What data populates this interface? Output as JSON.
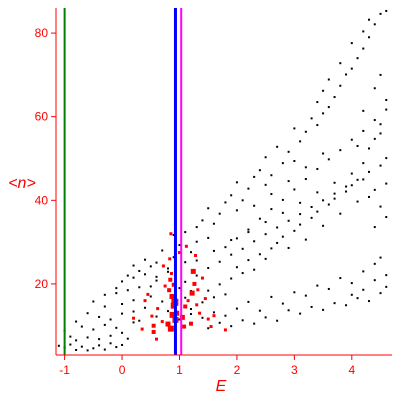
{
  "chart_data": {
    "type": "scatter",
    "xlabel": "E",
    "ylabel": "<n>",
    "xlim": [
      -1.15,
      4.7
    ],
    "ylim": [
      3,
      86
    ],
    "xticks": [
      -1,
      0,
      1,
      2,
      3,
      4
    ],
    "yticks": [
      20,
      40,
      60,
      80
    ],
    "colors": {
      "axes": "#ff0000",
      "points": "#000000",
      "highlight": "#ff0000",
      "green_line": "#008000",
      "blue_line": "#0000ff",
      "magenta_line": "#ff00ff"
    },
    "vertical_lines": [
      {
        "x": -1.0,
        "color": "#008000"
      },
      {
        "x": 0.93,
        "color": "#0000ff"
      },
      {
        "x": 1.03,
        "color": "#ff00ff"
      }
    ],
    "series": [
      {
        "color": "#000000",
        "points": [
          [
            -1.1,
            5.2
          ],
          [
            -1.0,
            4.8
          ],
          [
            -0.9,
            5.5
          ],
          [
            -0.8,
            4.2
          ],
          [
            -0.7,
            5.0
          ],
          [
            -0.6,
            4.1
          ],
          [
            -0.5,
            4.6
          ],
          [
            -0.4,
            5.3
          ],
          [
            -0.3,
            4.3
          ],
          [
            -0.2,
            5.8
          ],
          [
            -0.1,
            4.9
          ],
          [
            0.0,
            5.4
          ],
          [
            -0.8,
            6.5
          ],
          [
            -0.6,
            7.2
          ],
          [
            -0.4,
            6.8
          ],
          [
            -0.2,
            7.6
          ],
          [
            0.0,
            8.3
          ],
          [
            0.1,
            6.9
          ],
          [
            -0.5,
            9.1
          ],
          [
            -0.3,
            10.2
          ],
          [
            -0.1,
            9.5
          ],
          [
            0.2,
            10.8
          ],
          [
            -0.7,
            9.8
          ],
          [
            -0.4,
            12.1
          ],
          [
            -0.2,
            11.5
          ],
          [
            0.0,
            12.9
          ],
          [
            0.2,
            13.4
          ],
          [
            0.3,
            11.2
          ],
          [
            -0.3,
            14.6
          ],
          [
            0.0,
            15.2
          ],
          [
            0.2,
            16.1
          ],
          [
            0.4,
            14.3
          ],
          [
            -0.1,
            17.8
          ],
          [
            0.1,
            18.5
          ],
          [
            0.3,
            19.2
          ],
          [
            0.5,
            17.0
          ],
          [
            0.0,
            20.6
          ],
          [
            0.2,
            21.5
          ],
          [
            0.4,
            22.3
          ],
          [
            0.6,
            20.8
          ],
          [
            0.3,
            23.1
          ],
          [
            0.5,
            24.2
          ],
          [
            0.6,
            25.1
          ],
          [
            0.8,
            23.7
          ],
          [
            0.9,
            26.4
          ],
          [
            1.1,
            25.2
          ],
          [
            0.7,
            28.0
          ],
          [
            1.0,
            29.3
          ],
          [
            1.2,
            27.6
          ],
          [
            1.3,
            30.1
          ],
          [
            0.9,
            31.7
          ],
          [
            1.1,
            32.4
          ],
          [
            1.3,
            33.6
          ],
          [
            1.5,
            31.0
          ],
          [
            1.4,
            35.2
          ],
          [
            1.6,
            34.4
          ],
          [
            1.7,
            36.8
          ],
          [
            1.5,
            38.1
          ],
          [
            1.8,
            39.5
          ],
          [
            2.0,
            37.6
          ],
          [
            1.9,
            41.2
          ],
          [
            2.1,
            40.0
          ],
          [
            2.2,
            42.8
          ],
          [
            2.0,
            44.3
          ],
          [
            2.3,
            45.6
          ],
          [
            2.5,
            43.7
          ],
          [
            2.4,
            47.2
          ],
          [
            2.6,
            46.0
          ],
          [
            2.8,
            48.9
          ],
          [
            2.5,
            50.3
          ],
          [
            2.9,
            51.6
          ],
          [
            3.0,
            49.4
          ],
          [
            2.7,
            52.8
          ],
          [
            3.1,
            54.1
          ],
          [
            3.2,
            56.4
          ],
          [
            3.0,
            57.2
          ],
          [
            3.4,
            58.0
          ],
          [
            3.3,
            59.6
          ],
          [
            3.5,
            60.8
          ],
          [
            3.6,
            62.3
          ],
          [
            3.4,
            63.5
          ],
          [
            3.7,
            64.7
          ],
          [
            3.5,
            66.2
          ],
          [
            3.8,
            67.4
          ],
          [
            3.6,
            68.9
          ],
          [
            3.9,
            70.1
          ],
          [
            4.0,
            71.5
          ],
          [
            3.8,
            72.8
          ],
          [
            4.1,
            74.0
          ],
          [
            4.2,
            76.3
          ],
          [
            4.0,
            77.6
          ],
          [
            4.3,
            79.0
          ],
          [
            4.2,
            80.4
          ],
          [
            4.4,
            82.1
          ],
          [
            4.5,
            84.6
          ],
          [
            4.6,
            85.3
          ],
          [
            4.3,
            83.2
          ],
          [
            4.5,
            70.0
          ],
          [
            4.4,
            66.8
          ],
          [
            4.6,
            64.0
          ],
          [
            4.2,
            61.4
          ],
          [
            4.5,
            58.2
          ],
          [
            1.2,
            14.0
          ],
          [
            1.4,
            15.6
          ],
          [
            1.6,
            16.8
          ],
          [
            1.5,
            18.4
          ],
          [
            1.7,
            19.9
          ],
          [
            1.8,
            17.5
          ],
          [
            1.9,
            21.3
          ],
          [
            2.1,
            22.6
          ],
          [
            2.0,
            24.0
          ],
          [
            2.2,
            25.7
          ],
          [
            2.3,
            23.4
          ],
          [
            2.4,
            27.1
          ],
          [
            2.6,
            28.5
          ],
          [
            2.5,
            26.0
          ],
          [
            2.7,
            29.8
          ],
          [
            2.8,
            31.3
          ],
          [
            2.9,
            28.6
          ],
          [
            3.0,
            32.7
          ],
          [
            3.1,
            34.2
          ],
          [
            3.2,
            30.6
          ],
          [
            3.3,
            35.8
          ],
          [
            3.4,
            37.3
          ],
          [
            3.5,
            33.9
          ],
          [
            3.6,
            39.0
          ],
          [
            3.7,
            40.4
          ],
          [
            3.8,
            36.8
          ],
          [
            3.9,
            42.1
          ],
          [
            4.0,
            43.6
          ],
          [
            4.1,
            39.7
          ],
          [
            4.2,
            45.0
          ],
          [
            4.3,
            46.8
          ],
          [
            4.4,
            42.5
          ],
          [
            4.5,
            48.3
          ],
          [
            4.6,
            50.1
          ],
          [
            4.3,
            52.4
          ],
          [
            4.4,
            54.7
          ],
          [
            4.5,
            56.0
          ],
          [
            4.2,
            48.9
          ],
          [
            4.6,
            44.0
          ],
          [
            4.1,
            53.0
          ],
          [
            1.0,
            11.5
          ],
          [
            1.2,
            12.8
          ],
          [
            1.4,
            11.9
          ],
          [
            1.6,
            13.2
          ],
          [
            1.8,
            12.4
          ],
          [
            2.0,
            14.1
          ],
          [
            2.2,
            15.7
          ],
          [
            2.4,
            13.6
          ],
          [
            2.6,
            16.9
          ],
          [
            2.8,
            15.3
          ],
          [
            3.0,
            18.0
          ],
          [
            3.2,
            17.2
          ],
          [
            3.4,
            19.6
          ],
          [
            3.6,
            18.8
          ],
          [
            3.8,
            21.4
          ],
          [
            4.0,
            20.2
          ],
          [
            4.2,
            23.0
          ],
          [
            4.4,
            24.8
          ],
          [
            4.6,
            22.1
          ],
          [
            4.5,
            26.3
          ],
          [
            1.1,
            20.5
          ],
          [
            1.3,
            22.0
          ],
          [
            1.5,
            23.8
          ],
          [
            1.7,
            25.3
          ],
          [
            1.9,
            27.0
          ],
          [
            2.1,
            28.4
          ],
          [
            2.3,
            30.2
          ],
          [
            2.5,
            31.9
          ],
          [
            2.7,
            33.5
          ],
          [
            2.9,
            35.1
          ],
          [
            3.1,
            36.7
          ],
          [
            3.3,
            38.4
          ],
          [
            3.5,
            40.0
          ],
          [
            3.7,
            41.6
          ],
          [
            3.9,
            43.3
          ],
          [
            4.1,
            44.9
          ],
          [
            4.3,
            40.8
          ],
          [
            4.5,
            38.5
          ],
          [
            4.6,
            36.0
          ],
          [
            4.4,
            33.6
          ],
          [
            1.8,
            28.8
          ],
          [
            2.0,
            30.9
          ],
          [
            2.2,
            33.0
          ],
          [
            2.4,
            35.6
          ],
          [
            2.6,
            37.9
          ],
          [
            2.8,
            40.1
          ],
          [
            3.0,
            42.6
          ],
          [
            3.2,
            45.1
          ],
          [
            3.4,
            47.5
          ],
          [
            3.6,
            49.8
          ],
          [
            3.8,
            52.0
          ],
          [
            4.0,
            54.5
          ],
          [
            4.2,
            56.6
          ],
          [
            4.4,
            59.2
          ],
          [
            4.6,
            61.7
          ],
          [
            2.3,
            38.7
          ],
          [
            2.6,
            41.5
          ],
          [
            2.9,
            44.6
          ],
          [
            3.2,
            47.9
          ],
          [
            3.5,
            51.2
          ],
          [
            1.3,
            25.6
          ],
          [
            1.6,
            27.9
          ],
          [
            1.9,
            30.5
          ],
          [
            2.2,
            32.4
          ],
          [
            2.5,
            34.8
          ],
          [
            2.8,
            37.0
          ],
          [
            3.1,
            39.4
          ],
          [
            3.4,
            41.9
          ],
          [
            3.7,
            44.2
          ],
          [
            4.0,
            46.4
          ],
          [
            0.6,
            12.2
          ],
          [
            0.8,
            13.5
          ],
          [
            0.7,
            15.8
          ],
          [
            0.9,
            17.1
          ],
          [
            0.5,
            19.4
          ],
          [
            0.6,
            21.7
          ],
          [
            0.8,
            22.9
          ],
          [
            1.0,
            19.0
          ],
          [
            1.1,
            16.7
          ],
          [
            1.2,
            18.3
          ],
          [
            1.5,
            9.4
          ],
          [
            1.7,
            10.7
          ],
          [
            1.9,
            9.9
          ],
          [
            2.1,
            11.3
          ],
          [
            2.3,
            10.5
          ],
          [
            2.5,
            12.0
          ],
          [
            2.7,
            11.2
          ],
          [
            2.9,
            13.7
          ],
          [
            3.1,
            12.9
          ],
          [
            3.3,
            14.5
          ],
          [
            3.5,
            13.8
          ],
          [
            3.7,
            15.4
          ],
          [
            3.9,
            14.9
          ],
          [
            4.1,
            16.6
          ],
          [
            4.3,
            15.9
          ],
          [
            4.5,
            17.8
          ],
          [
            4.6,
            19.3
          ],
          [
            4.4,
            20.9
          ],
          [
            4.2,
            18.6
          ],
          [
            4.0,
            17.4
          ],
          [
            -0.5,
            15.8
          ],
          [
            -0.6,
            13.0
          ],
          [
            -0.3,
            17.4
          ],
          [
            -0.1,
            19.0
          ],
          [
            0.1,
            22.0
          ],
          [
            0.2,
            24.4
          ],
          [
            0.4,
            25.8
          ],
          [
            -0.9,
            7.4
          ],
          [
            -0.8,
            11.0
          ],
          [
            -1.0,
            8.8
          ]
        ]
      },
      {
        "color": "#ff0000",
        "points": [
          [
            0.55,
            10.0,
            3
          ],
          [
            0.55,
            8.5,
            3
          ],
          [
            0.6,
            6.8,
            2
          ],
          [
            0.52,
            12.3,
            2
          ],
          [
            0.62,
            14.1,
            2
          ],
          [
            0.7,
            11.0,
            2
          ],
          [
            0.35,
            9.2,
            2
          ],
          [
            0.2,
            11.8,
            2
          ],
          [
            0.8,
            10.4,
            4
          ],
          [
            0.85,
            9.3,
            5
          ],
          [
            0.88,
            12.6,
            5
          ],
          [
            0.9,
            14.8,
            5
          ],
          [
            0.92,
            15.6,
            6
          ],
          [
            0.87,
            17.0,
            4
          ],
          [
            0.93,
            11.4,
            5
          ],
          [
            0.95,
            13.0,
            4
          ],
          [
            0.82,
            18.5,
            3
          ],
          [
            0.84,
            21.0,
            3
          ],
          [
            0.86,
            22.5,
            2
          ],
          [
            0.83,
            26.0,
            2
          ],
          [
            0.85,
            32.0,
            2
          ],
          [
            0.9,
            19.8,
            3
          ],
          [
            1.05,
            12.0,
            4
          ],
          [
            1.08,
            9.8,
            3
          ],
          [
            1.1,
            14.6,
            3
          ],
          [
            1.15,
            16.0,
            2
          ],
          [
            1.2,
            10.5,
            3
          ],
          [
            1.22,
            17.8,
            4
          ],
          [
            1.24,
            23.0,
            4
          ],
          [
            1.26,
            20.0,
            3
          ],
          [
            1.3,
            15.0,
            2
          ],
          [
            1.32,
            18.6,
            2
          ],
          [
            1.35,
            13.0,
            2
          ],
          [
            1.4,
            21.4,
            2
          ],
          [
            1.45,
            16.5,
            2
          ],
          [
            1.5,
            11.6,
            2
          ],
          [
            1.55,
            9.8,
            2
          ],
          [
            1.6,
            12.4,
            2
          ],
          [
            1.8,
            9.0,
            2
          ],
          [
            0.45,
            17.5,
            2
          ],
          [
            0.4,
            16.0,
            2
          ],
          [
            0.75,
            19.5,
            2
          ],
          [
            0.72,
            24.3,
            2
          ],
          [
            1.0,
            27.5,
            2
          ],
          [
            1.12,
            29.0,
            2
          ],
          [
            1.28,
            26.8,
            2
          ]
        ]
      }
    ]
  }
}
